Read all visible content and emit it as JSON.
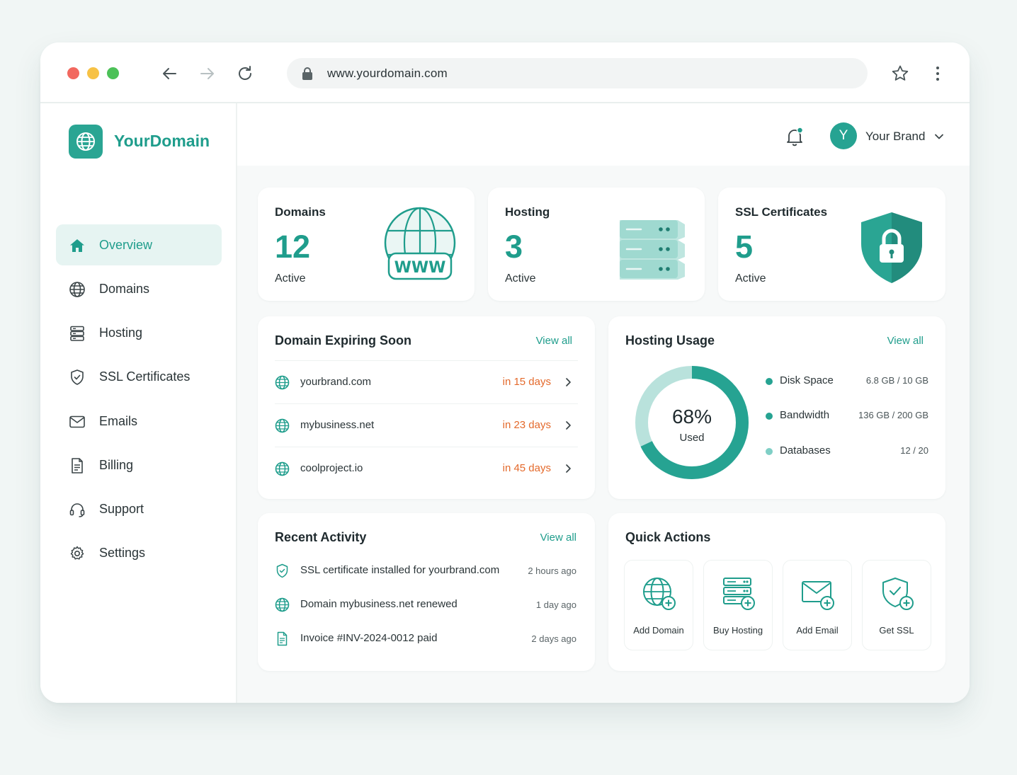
{
  "browser": {
    "url": "www.yourdomain.com",
    "dots": [
      "#f2685f",
      "#f7c245",
      "#4cc158"
    ]
  },
  "app": {
    "logo_text": "YourDomain",
    "accent": "#1f9d8c",
    "warning": "#e46a2c"
  },
  "sidebar": {
    "items": [
      {
        "label": "Overview",
        "icon": "home-icon",
        "active": true
      },
      {
        "label": "Domains",
        "icon": "globe-icon",
        "active": false
      },
      {
        "label": "Hosting",
        "icon": "server-icon",
        "active": false
      },
      {
        "label": "SSL Certificates",
        "icon": "shield-icon",
        "active": false
      },
      {
        "label": "Emails",
        "icon": "mail-icon",
        "active": false
      },
      {
        "label": "Billing",
        "icon": "document-icon",
        "active": false
      },
      {
        "label": "Support",
        "icon": "headset-icon",
        "active": false
      },
      {
        "label": "Settings",
        "icon": "gear-icon",
        "active": false
      }
    ]
  },
  "header": {
    "avatar_initial": "Y",
    "user_name": "Your Brand"
  },
  "stats": [
    {
      "title": "Domains",
      "value": "12",
      "sub": "Active",
      "art": "www-globe-icon",
      "art_text": "WWW"
    },
    {
      "title": "Hosting",
      "value": "3",
      "sub": "Active",
      "art": "server-stack-icon"
    },
    {
      "title": "SSL Certificates",
      "value": "5",
      "sub": "Active",
      "art": "shield-lock-icon"
    }
  ],
  "expiring": {
    "title": "Domain Expiring Soon",
    "view_all": "View all",
    "rows": [
      {
        "domain": "yourbrand.com",
        "days": "in 15 days"
      },
      {
        "domain": "mybusiness.net",
        "days": "in 23 days"
      },
      {
        "domain": "coolproject.io",
        "days": "in 45 days"
      }
    ]
  },
  "usage": {
    "title": "Hosting Usage",
    "view_all": "View all",
    "percent_label": "68%",
    "used_label": "Used",
    "percent": 68,
    "legend": [
      {
        "name": "Disk Space",
        "value": "6.8 GB / 10 GB",
        "color": "#26a392"
      },
      {
        "name": "Bandwidth",
        "value": "136 GB / 200 GB",
        "color": "#26a392"
      },
      {
        "name": "Databases",
        "value": "12 / 20",
        "color": "#7fcfc6"
      }
    ]
  },
  "activity": {
    "title": "Recent Activity",
    "view_all": "View all",
    "rows": [
      {
        "text": "SSL certificate installed for yourbrand.com",
        "time": "2 hours ago",
        "icon": "shield-check-icon"
      },
      {
        "text": "Domain mybusiness.net renewed",
        "time": "1 day ago",
        "icon": "globe-icon"
      },
      {
        "text": "Invoice #INV-2024-0012 paid",
        "time": "2 days ago",
        "icon": "document-icon"
      }
    ]
  },
  "quick_actions": {
    "title": "Quick Actions",
    "items": [
      {
        "label": "Add Domain",
        "icon": "add-domain-icon"
      },
      {
        "label": "Buy Hosting",
        "icon": "buy-hosting-icon"
      },
      {
        "label": "Add Email",
        "icon": "add-email-icon"
      },
      {
        "label": "Get SSL",
        "icon": "get-ssl-icon"
      }
    ]
  }
}
